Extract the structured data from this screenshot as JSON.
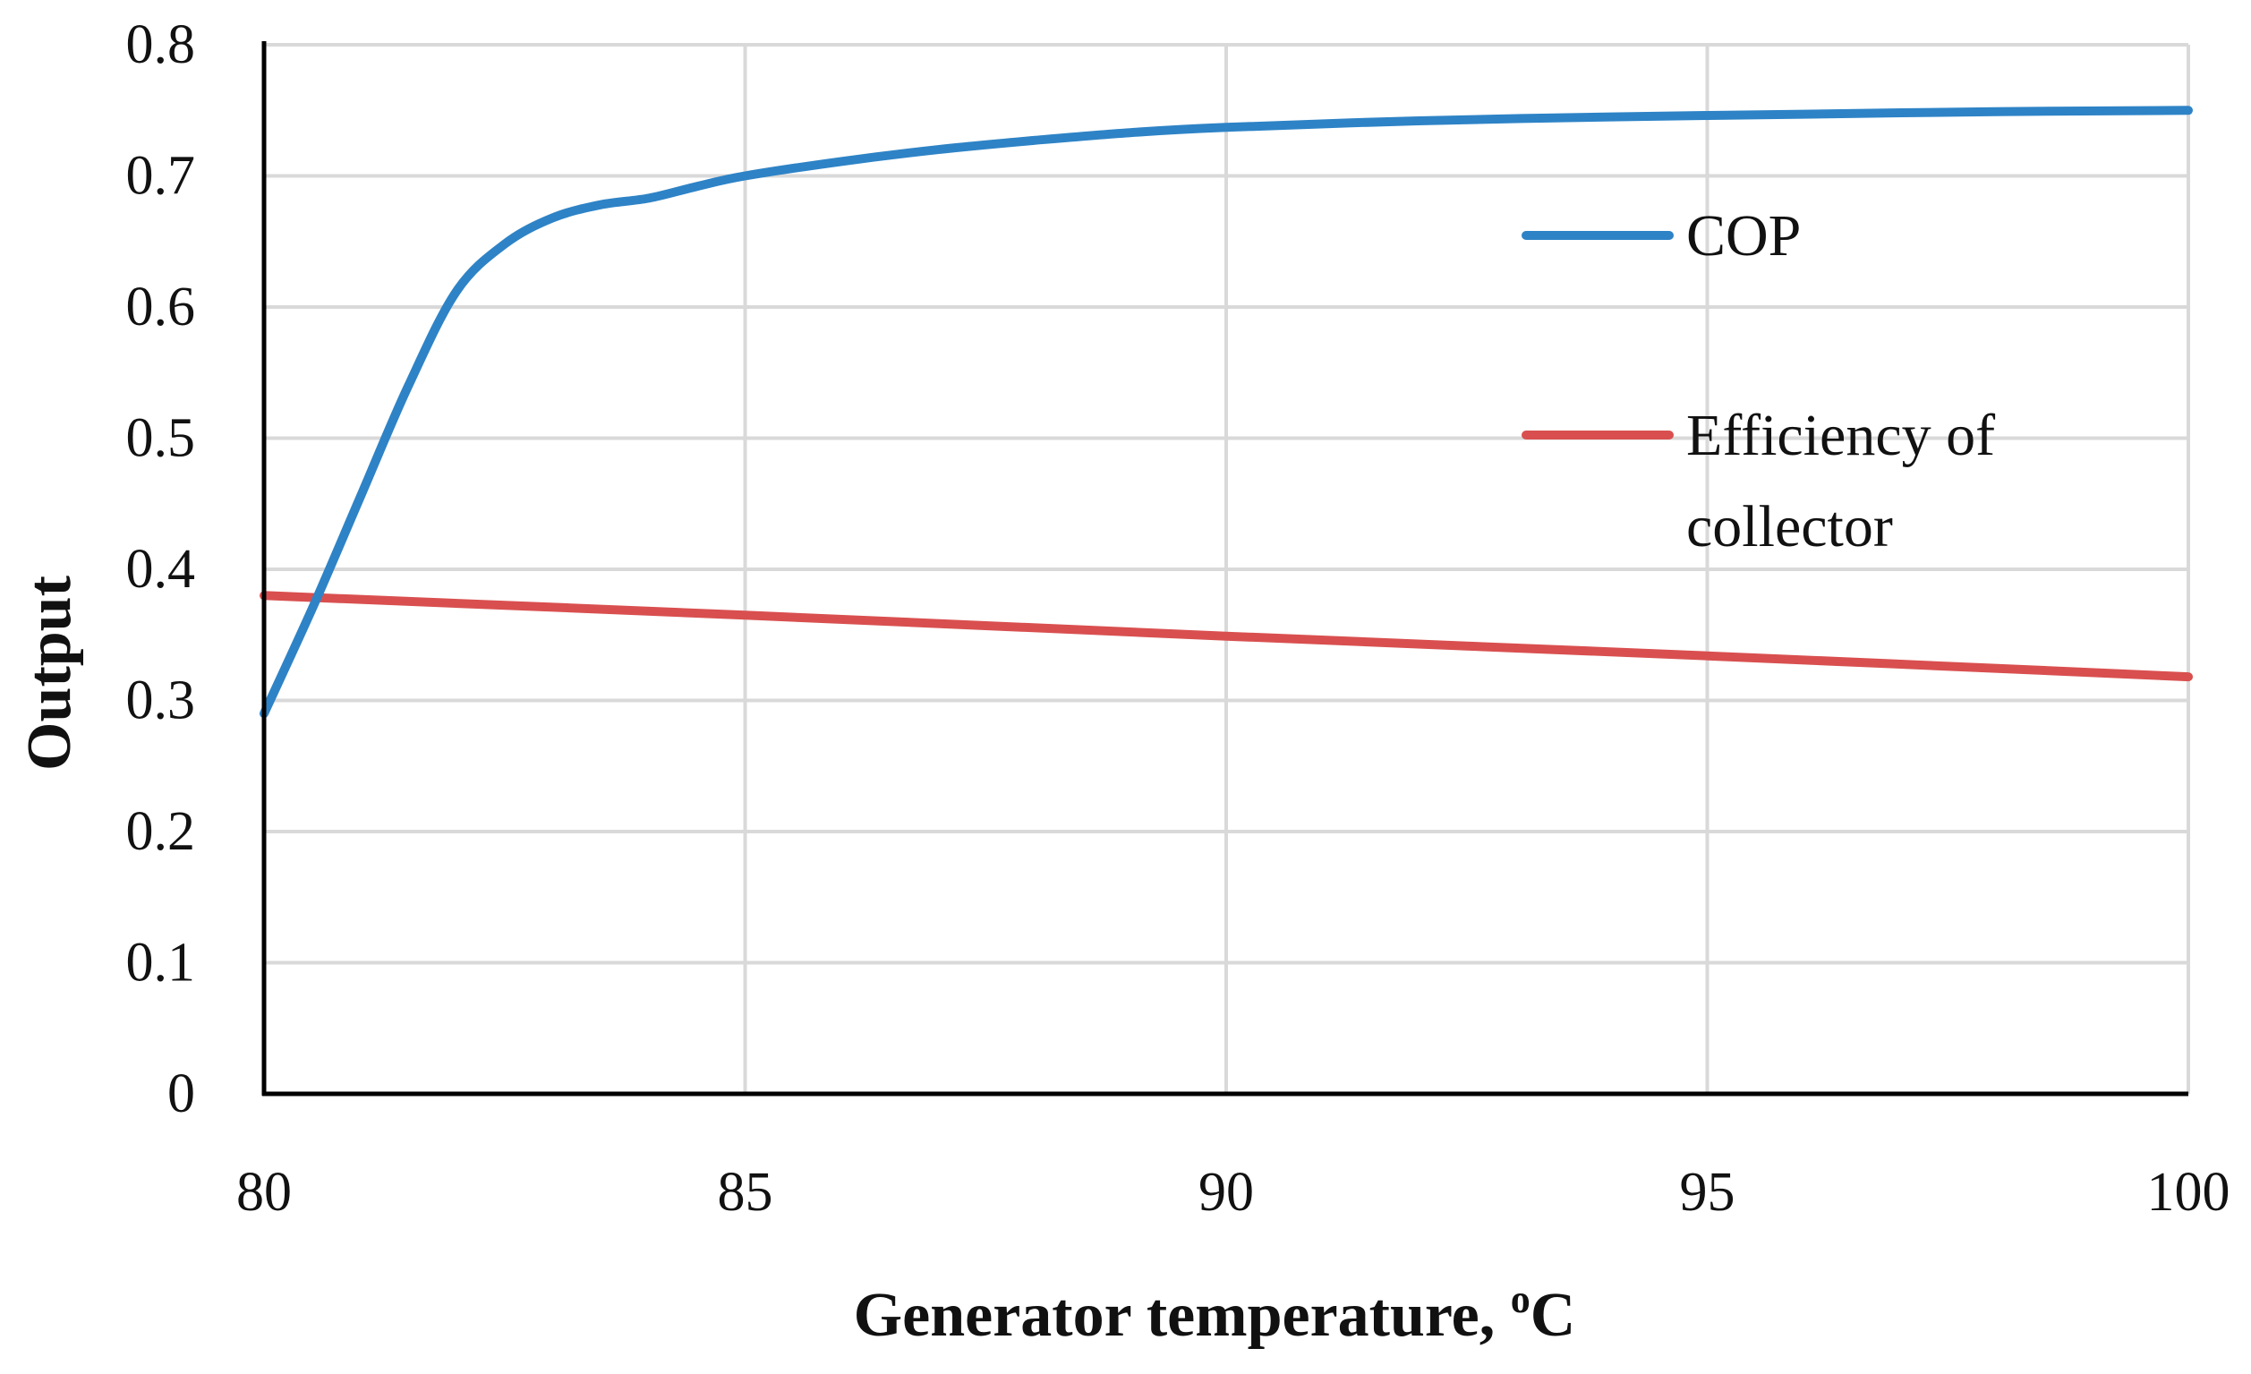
{
  "chart_data": {
    "type": "line",
    "title": "",
    "xlabel": "Generator temperature, ",
    "xlabel_sup": "o",
    "xlabel_unit": "C",
    "ylabel": "Output",
    "xlim": [
      80,
      100
    ],
    "ylim": [
      0,
      0.8
    ],
    "xticks": [
      80,
      85,
      90,
      95,
      100
    ],
    "yticks": [
      0,
      0.1,
      0.2,
      0.3,
      0.4,
      0.5,
      0.6,
      0.7,
      0.8
    ],
    "xtick_labels": [
      "80",
      "85",
      "90",
      "95",
      "100"
    ],
    "ytick_labels": [
      "0",
      "0.1",
      "0.2",
      "0.3",
      "0.4",
      "0.5",
      "0.6",
      "0.7",
      "0.8"
    ],
    "grid": true,
    "legend_position": "right",
    "series": [
      {
        "name": "COP",
        "legend_lines": [
          "COP"
        ],
        "color": "#2e83c6",
        "x": [
          80,
          80.5,
          81,
          81.5,
          82,
          82.5,
          83,
          83.5,
          84,
          84.5,
          85,
          86,
          87,
          88,
          89,
          90,
          92,
          94,
          96,
          98,
          100
        ],
        "y": [
          0.29,
          0.37,
          0.455,
          0.54,
          0.612,
          0.648,
          0.668,
          0.678,
          0.683,
          0.692,
          0.7,
          0.711,
          0.72,
          0.727,
          0.733,
          0.737,
          0.742,
          0.745,
          0.747,
          0.749,
          0.75
        ]
      },
      {
        "name": "Efficiency of collector",
        "legend_lines": [
          "Efficiency of",
          "collector"
        ],
        "color": "#d94f4f",
        "x": [
          80,
          85,
          90,
          95,
          100
        ],
        "y": [
          0.38,
          0.365,
          0.349,
          0.334,
          0.318
        ]
      }
    ]
  }
}
